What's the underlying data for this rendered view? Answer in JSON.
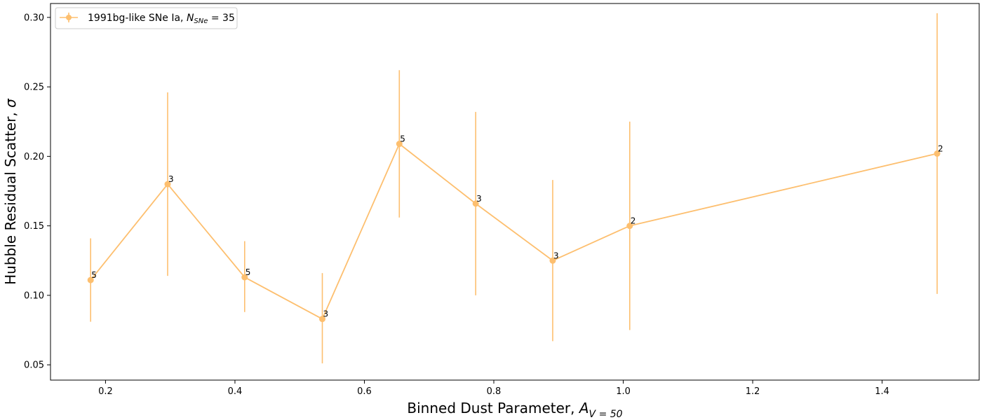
{
  "chart_data": {
    "type": "line",
    "xlabel_main": "Binned Dust Parameter, ",
    "xlabel_var": "A",
    "xlabel_sub": "V = 50",
    "ylabel_main": "Hubble Residual Scatter, ",
    "ylabel_var": "σ",
    "xlim": [
      0.115,
      1.55
    ],
    "ylim": [
      0.039,
      0.31
    ],
    "xticks": [
      0.2,
      0.4,
      0.6,
      0.8,
      1.0,
      1.2,
      1.4
    ],
    "xtick_labels": [
      "0.2",
      "0.4",
      "0.6",
      "0.8",
      "1.0",
      "1.2",
      "1.4"
    ],
    "yticks": [
      0.05,
      0.1,
      0.15,
      0.2,
      0.25,
      0.3
    ],
    "ytick_labels": [
      "0.05",
      "0.10",
      "0.15",
      "0.20",
      "0.25",
      "0.30"
    ],
    "legend_position": "upper-left",
    "series": [
      {
        "name_prefix": "1991bg-like SNe Ia, ",
        "name_var": "N",
        "name_sub": "SNe",
        "name_suffix": " = 35",
        "color": "#fdbf6f",
        "x": [
          0.177,
          0.296,
          0.415,
          0.535,
          0.654,
          0.772,
          0.891,
          1.01,
          1.485
        ],
        "y": [
          0.111,
          0.18,
          0.113,
          0.083,
          0.209,
          0.166,
          0.125,
          0.15,
          0.202
        ],
        "err_lower": [
          0.03,
          0.066,
          0.025,
          0.032,
          0.053,
          0.066,
          0.058,
          0.075,
          0.101
        ],
        "err_upper": [
          0.03,
          0.066,
          0.026,
          0.033,
          0.053,
          0.066,
          0.058,
          0.075,
          0.101
        ],
        "counts": [
          "5",
          "3",
          "5",
          "3",
          "5",
          "3",
          "3",
          "2",
          "2"
        ]
      }
    ]
  }
}
